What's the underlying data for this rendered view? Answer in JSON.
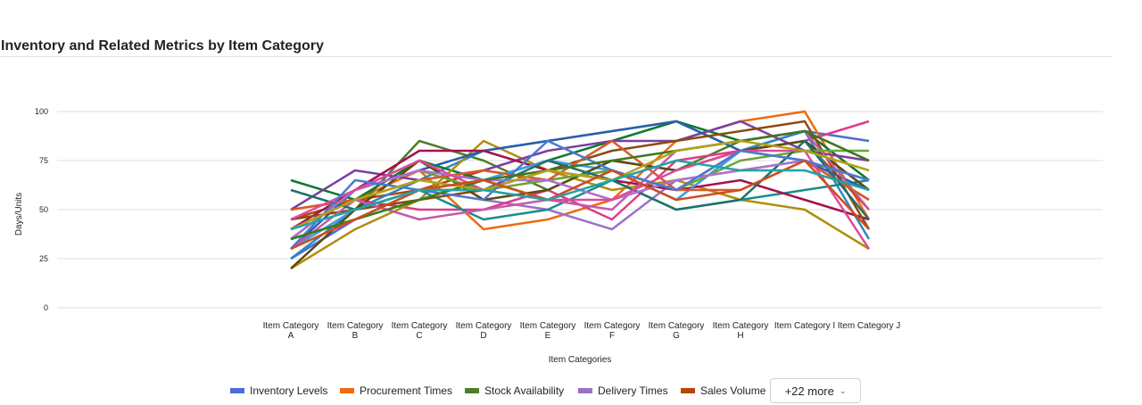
{
  "chart_data": {
    "type": "line",
    "title": "Inventory and Related Metrics by Item Category",
    "xlabel": "Item Categories",
    "ylabel": "Days/Units",
    "ylim": [
      0,
      100
    ],
    "yticks": [
      0,
      25,
      50,
      75,
      100
    ],
    "categories": [
      [
        "Item Category",
        "A"
      ],
      [
        "Item Category",
        "B"
      ],
      [
        "Item Category",
        "C"
      ],
      [
        "Item Category",
        "D"
      ],
      [
        "Item Category",
        "E"
      ],
      [
        "Item Category",
        "F"
      ],
      [
        "Item Category",
        "G"
      ],
      [
        "Item Category",
        "H"
      ],
      [
        "Item Category I"
      ],
      [
        "Item Category J"
      ]
    ],
    "series": [
      {
        "name": "Inventory Levels",
        "color": "#4a6ed8",
        "values": [
          25,
          45,
          60,
          65,
          55,
          70,
          55,
          80,
          90,
          85
        ]
      },
      {
        "name": "Procurement Times",
        "color": "#ef6a10",
        "values": [
          50,
          55,
          70,
          40,
          45,
          55,
          85,
          95,
          100,
          45
        ]
      },
      {
        "name": "Stock Availability",
        "color": "#4f7d2a",
        "values": [
          30,
          50,
          85,
          75,
          60,
          75,
          70,
          85,
          90,
          75
        ]
      },
      {
        "name": "Delivery Times",
        "color": "#9a71c9",
        "values": [
          35,
          60,
          75,
          55,
          50,
          40,
          65,
          70,
          75,
          55
        ]
      },
      {
        "name": "Sales Volume",
        "color": "#b4460e",
        "values": [
          45,
          55,
          60,
          70,
          65,
          70,
          60,
          80,
          85,
          50
        ]
      },
      {
        "color": "#2e86c1",
        "values": [
          25,
          50,
          65,
          80,
          85,
          90,
          95,
          80,
          90,
          35
        ]
      },
      {
        "color": "#e03a8a",
        "values": [
          40,
          55,
          50,
          50,
          60,
          45,
          75,
          80,
          85,
          95
        ]
      },
      {
        "color": "#0f7a2e",
        "values": [
          65,
          55,
          75,
          65,
          75,
          85,
          95,
          85,
          90,
          65
        ]
      },
      {
        "color": "#b08e0e",
        "values": [
          20,
          40,
          55,
          85,
          70,
          60,
          65,
          55,
          50,
          30
        ]
      },
      {
        "color": "#1a8c8c",
        "values": [
          35,
          45,
          60,
          45,
          50,
          65,
          50,
          55,
          60,
          65
        ]
      },
      {
        "color": "#7b3fa0",
        "values": [
          50,
          70,
          65,
          70,
          80,
          85,
          85,
          95,
          80,
          75
        ]
      },
      {
        "color": "#2b5fa8",
        "values": [
          30,
          60,
          70,
          80,
          85,
          90,
          95,
          80,
          75,
          60
        ]
      },
      {
        "color": "#a5114f",
        "values": [
          40,
          60,
          80,
          80,
          70,
          65,
          60,
          65,
          55,
          45
        ]
      },
      {
        "color": "#8a4b14",
        "values": [
          45,
          50,
          55,
          60,
          70,
          80,
          85,
          90,
          95,
          40
        ]
      },
      {
        "color": "#3f9fe0",
        "values": [
          30,
          50,
          60,
          65,
          75,
          70,
          55,
          80,
          85,
          60
        ]
      },
      {
        "color": "#5c4a10",
        "values": [
          20,
          50,
          75,
          55,
          60,
          75,
          70,
          80,
          85,
          60
        ]
      },
      {
        "color": "#c45aa8",
        "values": [
          30,
          55,
          45,
          50,
          55,
          50,
          80,
          85,
          90,
          50
        ]
      },
      {
        "color": "#6aa53a",
        "values": [
          35,
          60,
          70,
          60,
          65,
          70,
          60,
          75,
          80,
          80
        ]
      },
      {
        "color": "#d75a2a",
        "values": [
          50,
          55,
          65,
          70,
          65,
          85,
          60,
          60,
          75,
          55
        ]
      },
      {
        "color": "#1f6f6f",
        "values": [
          60,
          50,
          60,
          60,
          75,
          65,
          50,
          55,
          85,
          45
        ]
      },
      {
        "color": "#ad70cf",
        "values": [
          35,
          60,
          70,
          65,
          65,
          55,
          65,
          70,
          75,
          65
        ]
      },
      {
        "color": "#e0489a",
        "values": [
          45,
          60,
          75,
          60,
          55,
          55,
          70,
          80,
          80,
          30
        ]
      },
      {
        "color": "#4a7ad0",
        "values": [
          30,
          65,
          60,
          55,
          85,
          70,
          60,
          80,
          75,
          65
        ]
      },
      {
        "color": "#3c7a1e",
        "values": [
          35,
          45,
          55,
          65,
          70,
          75,
          80,
          85,
          90,
          75
        ]
      },
      {
        "color": "#b3a01b",
        "values": [
          40,
          55,
          65,
          60,
          70,
          65,
          80,
          85,
          80,
          70
        ]
      },
      {
        "color": "#d24c1c",
        "values": [
          30,
          45,
          60,
          65,
          55,
          70,
          55,
          60,
          75,
          40
        ]
      },
      {
        "color": "#23a3a3",
        "values": [
          40,
          50,
          60,
          60,
          55,
          65,
          75,
          70,
          70,
          60
        ]
      }
    ],
    "legend": {
      "position": "bottom",
      "visible_entries": [
        "Inventory Levels",
        "Procurement Times",
        "Stock Availability",
        "Delivery Times",
        "Sales Volume"
      ],
      "more_label": "+22 more"
    },
    "grid": true
  }
}
